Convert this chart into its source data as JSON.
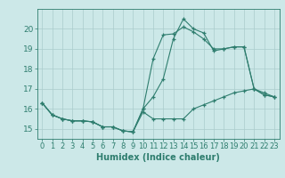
{
  "title": "",
  "xlabel": "Humidex (Indice chaleur)",
  "xlim": [
    -0.5,
    23.5
  ],
  "ylim": [
    14.5,
    21.0
  ],
  "yticks": [
    15,
    16,
    17,
    18,
    19,
    20
  ],
  "xticks": [
    0,
    1,
    2,
    3,
    4,
    5,
    6,
    7,
    8,
    9,
    10,
    11,
    12,
    13,
    14,
    15,
    16,
    17,
    18,
    19,
    20,
    21,
    22,
    23
  ],
  "hours": [
    0,
    1,
    2,
    3,
    4,
    5,
    6,
    7,
    8,
    9,
    10,
    11,
    12,
    13,
    14,
    15,
    16,
    17,
    18,
    19,
    20,
    21,
    22,
    23
  ],
  "line_max": [
    16.3,
    15.7,
    15.5,
    15.4,
    15.4,
    15.35,
    15.1,
    15.1,
    14.9,
    14.85,
    16.0,
    16.6,
    17.5,
    19.5,
    20.5,
    20.0,
    19.8,
    18.9,
    19.0,
    19.1,
    19.1,
    17.0,
    16.7,
    16.6
  ],
  "line_min": [
    16.3,
    15.7,
    15.5,
    15.4,
    15.4,
    15.35,
    15.1,
    15.1,
    14.9,
    14.85,
    15.85,
    15.5,
    15.5,
    15.5,
    15.5,
    16.0,
    16.2,
    16.4,
    16.6,
    16.8,
    16.9,
    17.0,
    16.7,
    16.6
  ],
  "line_mean": [
    16.3,
    15.7,
    15.5,
    15.4,
    15.4,
    15.35,
    15.1,
    15.1,
    14.9,
    14.85,
    16.0,
    18.5,
    19.7,
    19.75,
    20.1,
    19.85,
    19.5,
    19.0,
    19.0,
    19.1,
    19.1,
    17.0,
    16.8,
    16.6
  ],
  "line_color": "#2e7d6e",
  "bg_color": "#cce8e8",
  "grid_color": "#aacccc",
  "tick_font_size": 6,
  "xlabel_font_size": 7
}
